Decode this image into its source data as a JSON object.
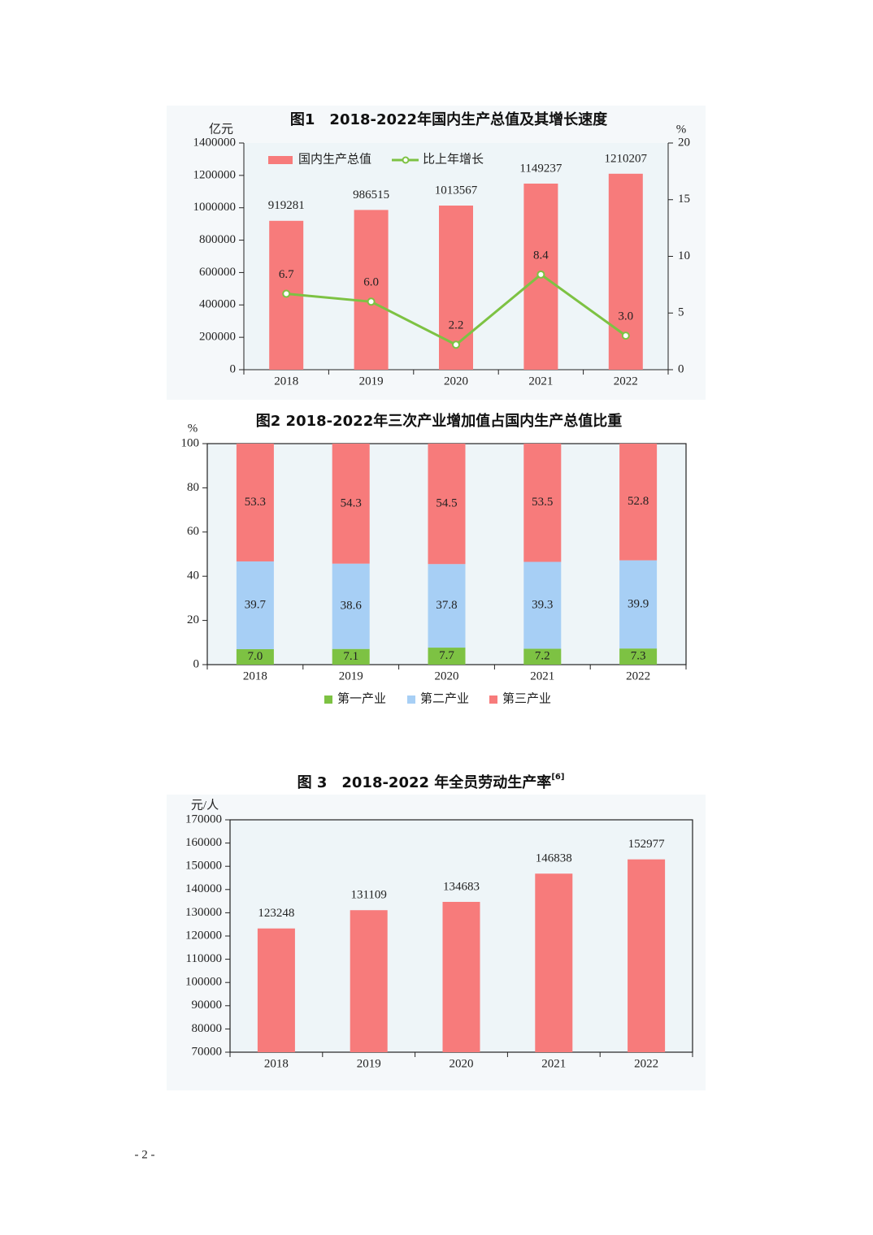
{
  "chart_data": [
    {
      "type": "combo",
      "title": "图1　2018-2022年国内生产总值及其增长速度",
      "y_unit": "亿元",
      "y2_unit": "%",
      "categories": [
        "2018",
        "2019",
        "2020",
        "2021",
        "2022"
      ],
      "series": [
        {
          "name": "国内生产总值",
          "color": "#f77b7b",
          "values": [
            919281,
            986515,
            1013567,
            1149237,
            1210207
          ]
        },
        {
          "name": "比上年增长",
          "color": "#7dc243",
          "axis": "y2",
          "values": [
            6.7,
            6.0,
            2.2,
            8.4,
            3.0
          ],
          "value_labels": [
            "6.7",
            "6.0",
            "2.2",
            "8.4",
            "3.0"
          ]
        }
      ],
      "ylim": [
        0,
        1400000
      ],
      "yticks": [
        0,
        200000,
        400000,
        600000,
        800000,
        1000000,
        1200000,
        1400000
      ],
      "y2lim": [
        0,
        20
      ],
      "y2ticks": [
        0,
        5,
        10,
        15,
        20
      ],
      "legend": "top-left"
    },
    {
      "type": "stacked_bar",
      "title": "图2 2018-2022年三次产业增加值占国内生产总值比重",
      "y_unit": "%",
      "categories": [
        "2018",
        "2019",
        "2020",
        "2021",
        "2022"
      ],
      "series": [
        {
          "name": "第一产业",
          "color": "#7dc243",
          "values": [
            7.0,
            7.1,
            7.7,
            7.2,
            7.3
          ],
          "value_labels": [
            "7.0",
            "7.1",
            "7.7",
            "7.2",
            "7.3"
          ]
        },
        {
          "name": "第二产业",
          "color": "#a7cff5",
          "values": [
            39.7,
            38.6,
            37.8,
            39.3,
            39.9
          ],
          "value_labels": [
            "39.7",
            "38.6",
            "37.8",
            "39.3",
            "39.9"
          ]
        },
        {
          "name": "第三产业",
          "color": "#f77b7b",
          "values": [
            53.3,
            54.3,
            54.5,
            53.5,
            52.8
          ],
          "value_labels": [
            "53.3",
            "54.3",
            "54.5",
            "53.5",
            "52.8"
          ]
        }
      ],
      "ylim": [
        0,
        100
      ],
      "yticks": [
        0,
        20,
        40,
        60,
        80,
        100
      ],
      "legend": "bottom"
    },
    {
      "type": "bar",
      "title": "图 3　2018-2022 年全员劳动生产率",
      "title_superscript": "[6]",
      "y_unit": "元/人",
      "categories": [
        "2018",
        "2019",
        "2020",
        "2021",
        "2022"
      ],
      "values": [
        123248,
        131109,
        134683,
        146838,
        152977
      ],
      "color": "#f77b7b",
      "ylim": [
        70000,
        170000
      ],
      "yticks": [
        70000,
        80000,
        90000,
        100000,
        110000,
        120000,
        130000,
        140000,
        150000,
        160000,
        170000
      ]
    }
  ],
  "page_number": "- 2 -"
}
